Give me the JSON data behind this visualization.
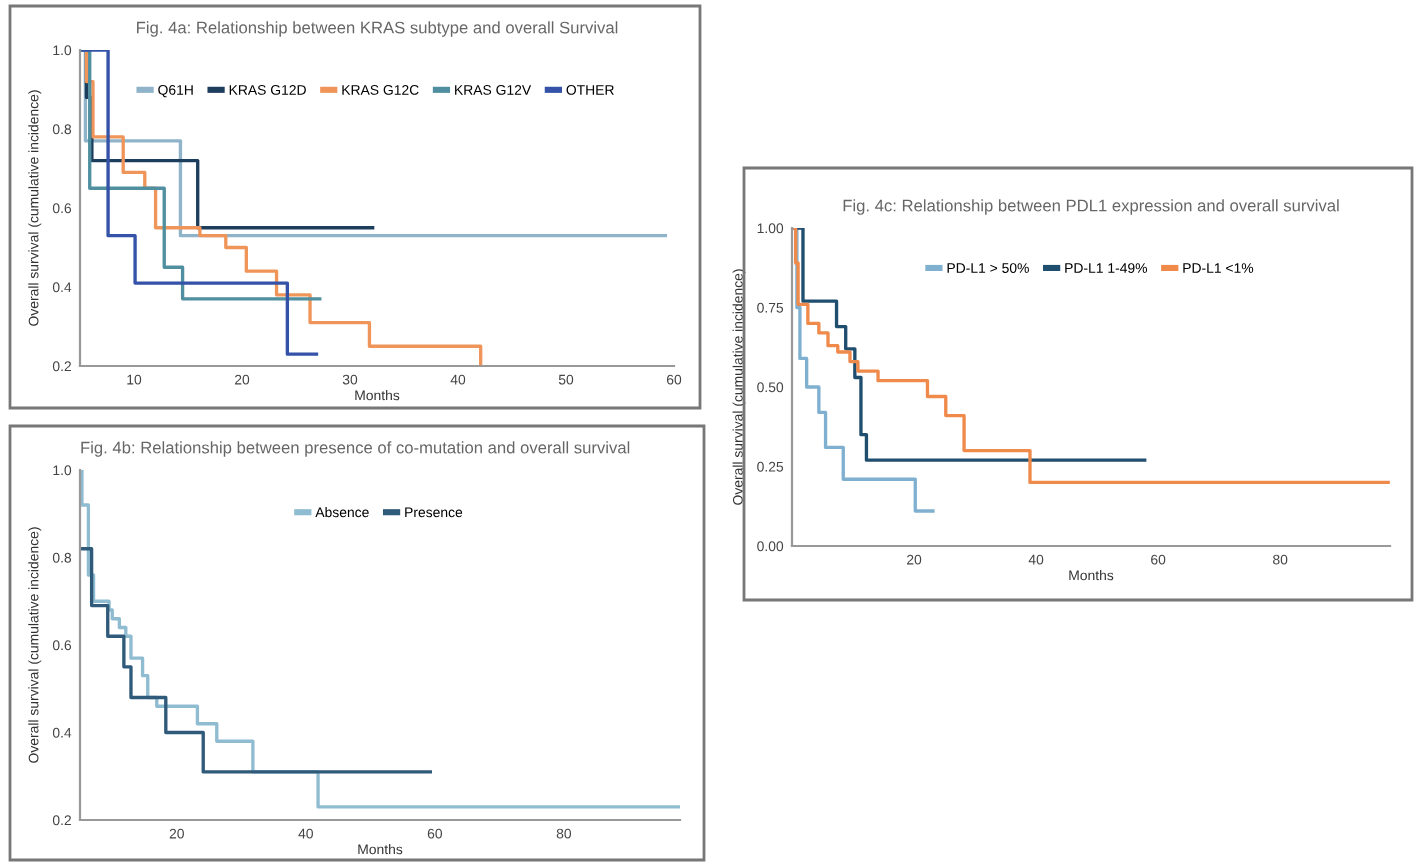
{
  "chart_data": [
    {
      "type": "step",
      "title": "Fig. 4a: Relationship between KRAS subtype and overall Survival",
      "xlabel": "Months",
      "ylabel": "Overall survival (cumulative incidence)",
      "xlim": [
        5,
        60
      ],
      "xticks": [
        10,
        20,
        30,
        40,
        50,
        60
      ],
      "ylim": [
        0.2,
        1.0
      ],
      "yticks": [
        {
          "value": 0.2,
          "label": "0.2"
        },
        {
          "value": 0.4,
          "label": "0.4"
        },
        {
          "value": 0.6,
          "label": "0.6"
        },
        {
          "value": 0.8,
          "label": "0.8"
        },
        {
          "value": 1.0,
          "label": "1.0"
        }
      ],
      "grid": false,
      "legend": "top",
      "series": [
        {
          "name": "Q61H",
          "color": "#8fb3c9",
          "x": [
            5,
            5.5,
            14.3,
            59.2
          ],
          "values": [
            1.0,
            0.77,
            0.53,
            0.53
          ]
        },
        {
          "name": "KRAS G12D",
          "color": "#1d3d5c",
          "x": [
            5,
            5.6,
            6.1,
            15.9,
            32.1
          ],
          "values": [
            1.0,
            0.88,
            0.72,
            0.55,
            0.55
          ]
        },
        {
          "name": "KRAS G12C",
          "color": "#f0955a",
          "x": [
            5,
            5.6,
            6.2,
            9.0,
            11.0,
            12.0,
            16.1,
            18.5,
            20.4,
            23.2,
            26.3,
            31.8,
            42.1
          ],
          "values": [
            1.0,
            0.92,
            0.78,
            0.69,
            0.65,
            0.55,
            0.53,
            0.5,
            0.44,
            0.38,
            0.31,
            0.25,
            0.2
          ]
        },
        {
          "name": "KRAS G12V",
          "color": "#4f8fa0",
          "x": [
            5,
            5.9,
            12.8,
            14.5,
            27.2
          ],
          "values": [
            1.0,
            0.65,
            0.45,
            0.37,
            0.37
          ]
        },
        {
          "name": "OTHER",
          "color": "#3452a8",
          "x": [
            5,
            7.6,
            10.1,
            24.2,
            26.9
          ],
          "values": [
            1.0,
            0.53,
            0.41,
            0.23,
            0.23
          ]
        }
      ]
    },
    {
      "type": "step",
      "title": "Fig. 4b: Relationship between presence of co-mutation and overall survival",
      "xlabel": "Months",
      "ylabel": "Overall survival (cumulative incidence)",
      "xlim": [
        5,
        98
      ],
      "xticks": [
        20,
        40,
        60,
        80
      ],
      "ylim": [
        0.2,
        1.0
      ],
      "yticks": [
        {
          "value": 0.2,
          "label": "0.2"
        },
        {
          "value": 0.4,
          "label": "0.4"
        },
        {
          "value": 0.6,
          "label": "0.6"
        },
        {
          "value": 0.8,
          "label": "0.8"
        },
        {
          "value": 1.0,
          "label": "1.0"
        }
      ],
      "grid": false,
      "legend": "top",
      "series": [
        {
          "name": "Absence",
          "color": "#8fbcd0",
          "x": [
            5,
            5.3,
            6.3,
            7.1,
            9.5,
            10.0,
            11.1,
            12.1,
            12.9,
            14.7,
            15.5,
            16.9,
            23.2,
            26.2,
            31.8,
            41.9,
            97.8
          ],
          "values": [
            1.0,
            0.92,
            0.76,
            0.7,
            0.68,
            0.66,
            0.64,
            0.62,
            0.57,
            0.53,
            0.48,
            0.46,
            0.42,
            0.38,
            0.31,
            0.23,
            0.23
          ]
        },
        {
          "name": "Presence",
          "color": "#2f5a7a",
          "x": [
            5,
            6.8,
            9.3,
            11.8,
            12.9,
            18.3,
            24.1,
            59.3
          ],
          "values": [
            0.82,
            0.69,
            0.62,
            0.55,
            0.48,
            0.4,
            0.31,
            0.31
          ]
        }
      ]
    },
    {
      "type": "step",
      "title": "Fig. 4c: Relationship between PDL1 expression and overall survival",
      "xlabel": "Months",
      "ylabel": "Overall survival (cumulative incidence)",
      "xlim": [
        0,
        98
      ],
      "xticks": [
        20,
        40,
        60,
        80
      ],
      "ylim": [
        0,
        1.0
      ],
      "yticks": [
        {
          "value": 0,
          "label": "0.00"
        },
        {
          "value": 0.25,
          "label": "0.25"
        },
        {
          "value": 0.5,
          "label": "0.50"
        },
        {
          "value": 0.75,
          "label": "0.75"
        },
        {
          "value": 1.0,
          "label": "1.00"
        }
      ],
      "grid": false,
      "legend": "top",
      "series": [
        {
          "name": "PD-L1 > 50%",
          "color": "#7fb0d0",
          "x": [
            0,
            0.8,
            1.3,
            2.4,
            4.4,
            5.5,
            8.4,
            20.2,
            23.1
          ],
          "values": [
            1.0,
            0.75,
            0.59,
            0.5,
            0.42,
            0.31,
            0.21,
            0.11,
            0.11
          ]
        },
        {
          "name": "PD-L1 1-49%",
          "color": "#1f4e6e",
          "x": [
            0,
            1.8,
            7.3,
            8.8,
            10.3,
            11.3,
            12.2,
            57.8
          ],
          "values": [
            1.0,
            0.77,
            0.69,
            0.62,
            0.53,
            0.35,
            0.27,
            0.27
          ]
        },
        {
          "name": "PD-L1 <1%",
          "color": "#f08a4b",
          "x": [
            0,
            0.6,
            1.0,
            2.6,
            4.4,
            5.9,
            7.5,
            9.5,
            10.8,
            14.1,
            22.2,
            25.2,
            28.2,
            39.0,
            97.7
          ],
          "values": [
            1.0,
            0.89,
            0.76,
            0.7,
            0.67,
            0.63,
            0.61,
            0.58,
            0.55,
            0.52,
            0.47,
            0.41,
            0.3,
            0.2,
            0.2
          ]
        }
      ]
    }
  ]
}
